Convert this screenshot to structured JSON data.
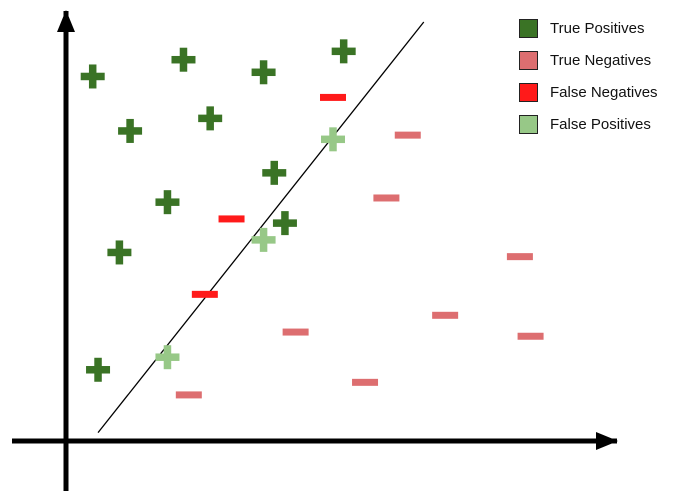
{
  "colors": {
    "true_positive": "#3a7325",
    "true_negative": "#dd6e70",
    "false_negative": "#ff1a1a",
    "false_positive": "#97c887",
    "axis": "#000000",
    "boundary": "#000000"
  },
  "legend": {
    "items": [
      {
        "key": "true_positive",
        "label": "True Positives"
      },
      {
        "key": "true_negative",
        "label": "True Negatives"
      },
      {
        "key": "false_negative",
        "label": "False Negatives"
      },
      {
        "key": "false_positive",
        "label": "False Positives"
      }
    ]
  },
  "chart_data": {
    "type": "scatter",
    "title": "",
    "xlabel": "",
    "ylabel": "",
    "xlim": [
      0,
      100
    ],
    "ylim": [
      0,
      100
    ],
    "decision_boundary": {
      "from": [
        6,
        2
      ],
      "to": [
        67,
        100
      ]
    },
    "series": [
      {
        "key": "true_positive",
        "name": "True Positives",
        "marker": "plus",
        "points": [
          [
            5,
            87
          ],
          [
            12,
            74
          ],
          [
            22,
            91
          ],
          [
            27,
            77
          ],
          [
            37,
            88
          ],
          [
            39,
            64
          ],
          [
            19,
            57
          ],
          [
            10,
            45
          ],
          [
            6,
            17
          ],
          [
            41,
            52
          ],
          [
            52,
            93
          ]
        ]
      },
      {
        "key": "true_negative",
        "name": "True Negatives",
        "marker": "minus",
        "points": [
          [
            64,
            73
          ],
          [
            60,
            58
          ],
          [
            85,
            44
          ],
          [
            71,
            30
          ],
          [
            43,
            26
          ],
          [
            87,
            25
          ],
          [
            56,
            14
          ],
          [
            23,
            11
          ]
        ]
      },
      {
        "key": "false_negative",
        "name": "False Negatives",
        "marker": "minus",
        "points": [
          [
            50,
            82
          ],
          [
            31,
            53
          ],
          [
            26,
            35
          ]
        ]
      },
      {
        "key": "false_positive",
        "name": "False Positives",
        "marker": "plus",
        "points": [
          [
            50,
            72
          ],
          [
            37,
            48
          ],
          [
            19,
            20
          ]
        ]
      }
    ]
  }
}
